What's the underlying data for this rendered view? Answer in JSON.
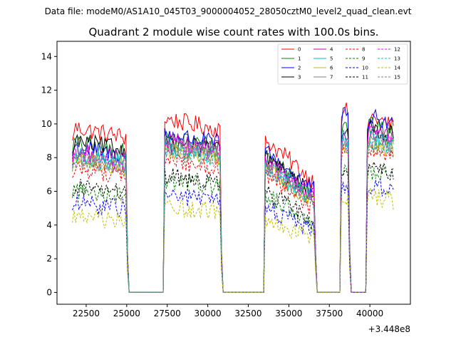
{
  "suptitle": "Data file: modeM0/AS1A10_045T03_9000004052_28050cztM0_level2_quad_clean.evt",
  "chart_data": {
    "type": "line",
    "title": "Quadrant 2 module wise count rates with 100.0s bins.",
    "xlabel": "",
    "ylabel": "",
    "x_offset_label": "+3.448e8",
    "xlim": [
      20700,
      42500
    ],
    "ylim": [
      -0.7,
      14.9
    ],
    "xticks": [
      22500,
      25000,
      27500,
      30000,
      32500,
      35000,
      37500,
      40000
    ],
    "xtick_labels": [
      "22500",
      "25000",
      "27500",
      "30000",
      "32500",
      "35000",
      "37500",
      "40000"
    ],
    "yticks": [
      0,
      2,
      4,
      6,
      8,
      10,
      12,
      14
    ],
    "ytick_labels": [
      "0",
      "2",
      "4",
      "6",
      "8",
      "10",
      "12",
      "14"
    ],
    "grid": false,
    "legend_position": "top-right",
    "legend_columns": 4,
    "active_intervals": [
      [
        21650,
        24950
      ],
      [
        27300,
        30750
      ],
      [
        33550,
        36550
      ],
      [
        38250,
        38650
      ],
      [
        39850,
        41450
      ]
    ],
    "series": [
      {
        "name": "0",
        "color": "#ff0000",
        "style": "solid",
        "levels": [
          9.8,
          10.3,
          10.1,
          11.3,
          10.5
        ]
      },
      {
        "name": "1",
        "color": "#008000",
        "style": "solid",
        "levels": [
          8.8,
          9.2,
          9.1,
          10.2,
          10.0
        ]
      },
      {
        "name": "2",
        "color": "#0000ff",
        "style": "solid",
        "levels": [
          8.6,
          9.4,
          9.3,
          10.8,
          10.5
        ]
      },
      {
        "name": "3",
        "color": "#000000",
        "style": "solid",
        "levels": [
          9.0,
          8.9,
          8.9,
          10.0,
          9.9
        ]
      },
      {
        "name": "4",
        "color": "#bf00bf",
        "style": "solid",
        "levels": [
          8.4,
          9.0,
          8.8,
          9.6,
          9.6
        ]
      },
      {
        "name": "5",
        "color": "#00bfbf",
        "style": "solid",
        "levels": [
          8.2,
          8.6,
          8.4,
          9.4,
          9.3
        ]
      },
      {
        "name": "6",
        "color": "#bfbf00",
        "style": "solid",
        "levels": [
          7.9,
          8.5,
          8.2,
          9.1,
          9.0
        ]
      },
      {
        "name": "7",
        "color": "#808080",
        "style": "solid",
        "levels": [
          8.0,
          8.7,
          8.4,
          9.3,
          9.2
        ]
      },
      {
        "name": "8",
        "color": "#ff0000",
        "style": "dashed",
        "levels": [
          7.4,
          7.9,
          7.6,
          8.5,
          8.6
        ]
      },
      {
        "name": "9",
        "color": "#008000",
        "style": "dashed",
        "levels": [
          6.1,
          6.7,
          6.4,
          7.4,
          7.3
        ]
      },
      {
        "name": "10",
        "color": "#0000ff",
        "style": "dashed",
        "levels": [
          5.3,
          5.8,
          5.6,
          6.5,
          6.4
        ]
      },
      {
        "name": "11",
        "color": "#000000",
        "style": "dashed",
        "levels": [
          6.3,
          6.9,
          6.6,
          7.6,
          7.5
        ]
      },
      {
        "name": "12",
        "color": "#ff00ff",
        "style": "dashed",
        "levels": [
          8.2,
          8.8,
          8.5,
          9.5,
          9.4
        ]
      },
      {
        "name": "13",
        "color": "#00bfbf",
        "style": "dashed",
        "levels": [
          8.0,
          8.5,
          8.3,
          9.2,
          9.1
        ]
      },
      {
        "name": "14",
        "color": "#bfbf00",
        "style": "dashed",
        "levels": [
          4.5,
          5.1,
          4.9,
          5.9,
          5.8
        ]
      },
      {
        "name": "15",
        "color": "#808080",
        "style": "dashed",
        "levels": [
          7.8,
          8.4,
          8.1,
          9.0,
          8.9
        ]
      }
    ]
  }
}
